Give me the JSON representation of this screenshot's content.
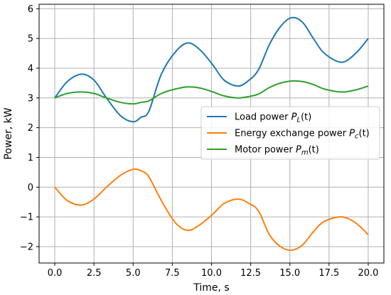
{
  "chart_data": {
    "type": "line",
    "title": "",
    "xlabel": "Time, s",
    "ylabel": "Power, kW",
    "xlim": [
      -1,
      21
    ],
    "ylim": [
      -2.55,
      6.15
    ],
    "xticks": [
      0.0,
      2.5,
      5.0,
      7.5,
      10.0,
      12.5,
      15.0,
      17.5,
      20.0
    ],
    "xtick_labels": [
      "0.0",
      "2.5",
      "5.0",
      "7.5",
      "10.0",
      "12.5",
      "15.0",
      "17.5",
      "20.0"
    ],
    "yticks": [
      -2,
      -1,
      0,
      1,
      2,
      3,
      4,
      5,
      6
    ],
    "ytick_labels": [
      "−2",
      "−1",
      "0",
      "1",
      "2",
      "3",
      "4",
      "5",
      "6"
    ],
    "grid": true,
    "legend_position": "center-right",
    "series": [
      {
        "name": "Load power P_L(t)",
        "legend_main": "Load power ",
        "legend_sym": "P",
        "legend_sub": "L",
        "legend_arg": "(t)",
        "color": "#1f77b4",
        "x": [
          0,
          0.8,
          1.7,
          2.5,
          3.3,
          4.2,
          5.0,
          5.5,
          6.0,
          6.8,
          7.7,
          8.5,
          9.3,
          10.1,
          10.8,
          11.7,
          12.4,
          13.0,
          13.7,
          14.4,
          15.1,
          15.8,
          16.5,
          17.2,
          18.3,
          19.2,
          20.0
        ],
        "y": [
          3.0,
          3.55,
          3.8,
          3.6,
          3.0,
          2.4,
          2.2,
          2.35,
          2.55,
          3.8,
          4.55,
          4.85,
          4.6,
          4.1,
          3.6,
          3.4,
          3.6,
          3.95,
          4.8,
          5.4,
          5.7,
          5.55,
          5.0,
          4.5,
          4.2,
          4.5,
          5.0
        ]
      },
      {
        "name": "Energy exchange power P_c(t)",
        "legend_main": "Energy exchange power ",
        "legend_sym": "P",
        "legend_sub": "c",
        "legend_arg": "(t)",
        "color": "#ff7f0e",
        "x": [
          0,
          0.8,
          1.7,
          2.5,
          3.3,
          4.2,
          5.0,
          5.5,
          6.0,
          6.8,
          7.7,
          8.5,
          9.3,
          10.1,
          10.8,
          11.7,
          12.4,
          13.0,
          13.7,
          14.4,
          15.1,
          15.8,
          16.5,
          17.2,
          18.3,
          19.2,
          20.0
        ],
        "y": [
          0.0,
          -0.45,
          -0.6,
          -0.4,
          0.0,
          0.4,
          0.6,
          0.55,
          0.35,
          -0.45,
          -1.2,
          -1.45,
          -1.25,
          -0.9,
          -0.55,
          -0.4,
          -0.55,
          -0.8,
          -1.6,
          -2.0,
          -2.12,
          -1.95,
          -1.5,
          -1.15,
          -1.0,
          -1.2,
          -1.6
        ]
      },
      {
        "name": "Motor power P_m(t)",
        "legend_main": "Motor power ",
        "legend_sym": "P",
        "legend_sub": "m",
        "legend_arg": "(t)",
        "color": "#2ca02c",
        "x": [
          0,
          0.8,
          1.7,
          2.5,
          3.3,
          4.2,
          5.0,
          5.5,
          6.0,
          6.8,
          7.7,
          8.5,
          9.3,
          10.1,
          10.8,
          11.7,
          12.4,
          13.0,
          13.7,
          14.4,
          15.1,
          15.8,
          16.5,
          17.2,
          18.3,
          19.2,
          20.0
        ],
        "y": [
          3.0,
          3.15,
          3.2,
          3.15,
          3.0,
          2.85,
          2.8,
          2.85,
          2.9,
          3.15,
          3.3,
          3.37,
          3.33,
          3.2,
          3.07,
          3.0,
          3.05,
          3.13,
          3.35,
          3.5,
          3.57,
          3.55,
          3.45,
          3.3,
          3.2,
          3.27,
          3.4
        ]
      }
    ]
  }
}
